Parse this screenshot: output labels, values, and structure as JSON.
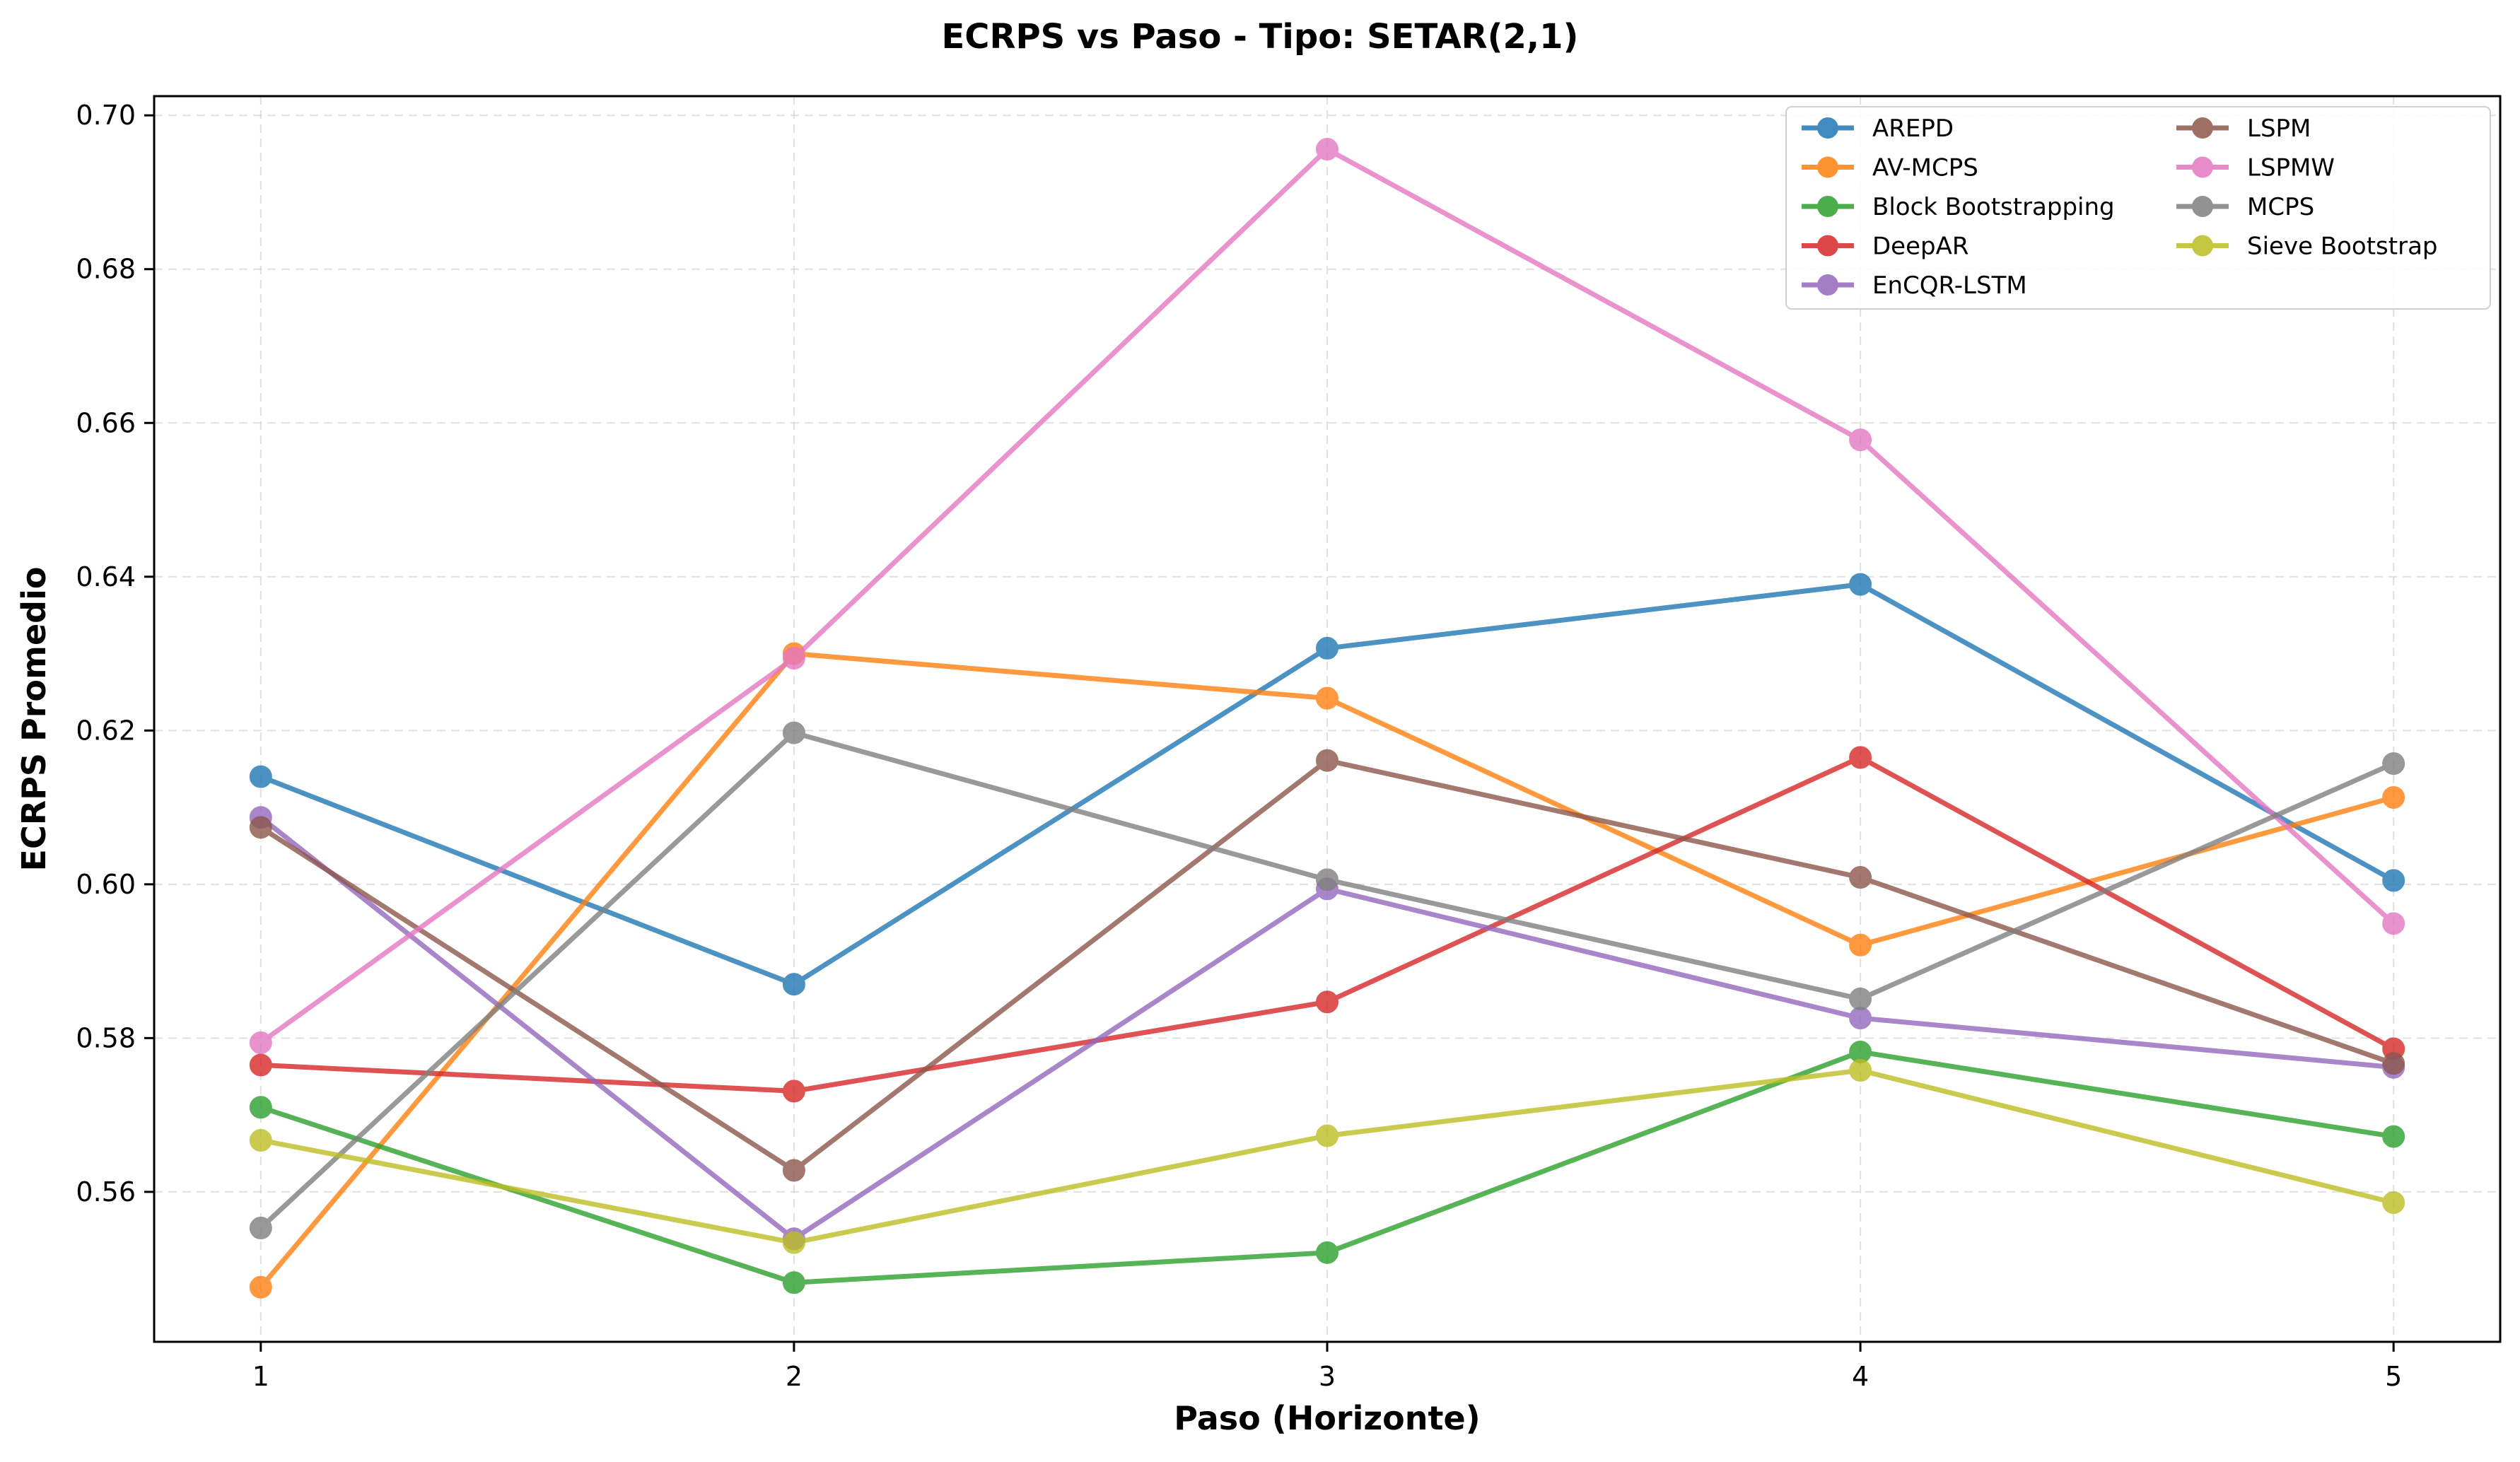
{
  "chart_data": {
    "type": "line",
    "title": "ECRPS vs Paso - Tipo: SETAR(2,1)",
    "xlabel": "Paso (Horizonte)",
    "ylabel": "ECRPS Promedio",
    "x": [
      1,
      2,
      3,
      4,
      5
    ],
    "xlim": [
      0.8,
      5.2
    ],
    "ylim": [
      0.5405,
      0.7025
    ],
    "yticks": [
      0.56,
      0.58,
      0.6,
      0.62,
      0.64,
      0.66,
      0.68,
      0.7
    ],
    "ytick_labels": [
      "0.56",
      "0.58",
      "0.60",
      "0.62",
      "0.64",
      "0.66",
      "0.68",
      "0.70"
    ],
    "xtick_labels": [
      "1",
      "2",
      "3",
      "4",
      "5"
    ],
    "grid": true,
    "legend_position": "top-right",
    "series": [
      {
        "name": "AREPD",
        "color": "#1f77b4",
        "values": [
          0.614,
          0.587,
          0.6307,
          0.639,
          0.6005
        ]
      },
      {
        "name": "AV-MCPS",
        "color": "#ff7f0e",
        "values": [
          0.5476,
          0.63,
          0.6242,
          0.5921,
          0.6113
        ]
      },
      {
        "name": "Block Bootstrapping",
        "color": "#2ca02c",
        "values": [
          0.571,
          0.5482,
          0.5521,
          0.5782,
          0.5672
        ]
      },
      {
        "name": "DeepAR",
        "color": "#d62728",
        "values": [
          0.5765,
          0.5731,
          0.5847,
          0.6165,
          0.5786
        ]
      },
      {
        "name": "EnCQR-LSTM",
        "color": "#9467bd",
        "values": [
          0.6087,
          0.5539,
          0.5994,
          0.5826,
          0.5762
        ]
      },
      {
        "name": "LSPM",
        "color": "#8c564b",
        "values": [
          0.6074,
          0.5628,
          0.6161,
          0.6009,
          0.5767
        ]
      },
      {
        "name": "LSPMW",
        "color": "#e377c2",
        "values": [
          0.5794,
          0.6294,
          0.6956,
          0.6578,
          0.5949
        ]
      },
      {
        "name": "MCPS",
        "color": "#7f7f7f",
        "values": [
          0.5553,
          0.6197,
          0.6006,
          0.5851,
          0.6157
        ]
      },
      {
        "name": "Sieve Bootstrap",
        "color": "#bcbd22",
        "values": [
          0.5667,
          0.5534,
          0.5673,
          0.5758,
          0.5586
        ]
      }
    ]
  }
}
